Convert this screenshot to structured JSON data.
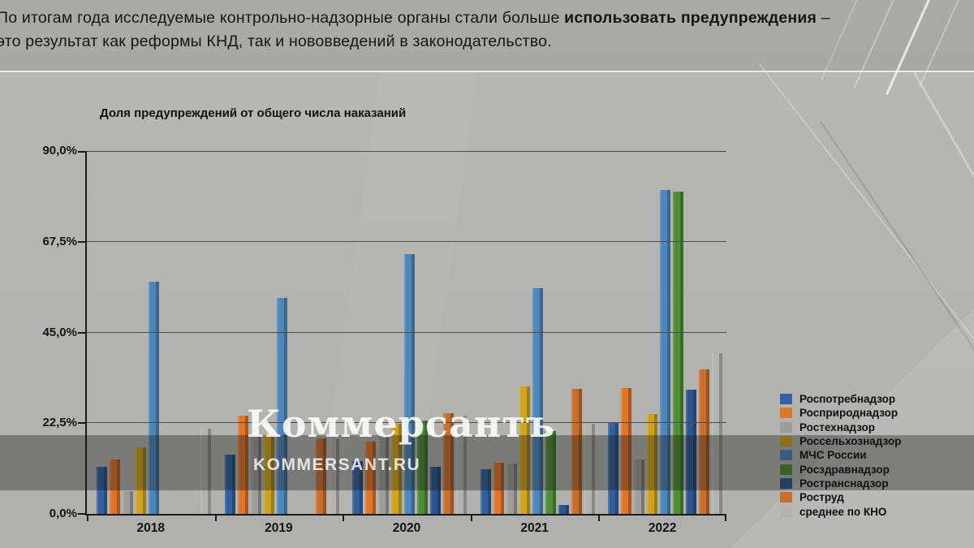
{
  "header": {
    "line1_normal": "По итогам года исследуемые контрольно-надзорные органы стали больше ",
    "line1_bold": "использовать предупреждения",
    "line1_suffix": " –",
    "line2": "это результат как реформы КНД, так и нововведений в законодательство."
  },
  "watermark": {
    "title": "Коммерсантъ",
    "site": "KOMMERSANT.RU"
  },
  "chart_data": {
    "type": "bar",
    "title": "Доля предупреждений от общего числа наказаний",
    "categories": [
      "2018",
      "2019",
      "2020",
      "2021",
      "2022"
    ],
    "series": [
      {
        "name": "Роспотребнадзор",
        "color": "#33619c",
        "values": [
          11.7,
          14.8,
          13.1,
          11.1,
          22.5
        ]
      },
      {
        "name": "Росприроднадзор",
        "color": "#de7529",
        "values": [
          13.4,
          24.4,
          17.9,
          12.7,
          31.3
        ]
      },
      {
        "name": "Ростехнадзор",
        "color": "#9d9d9b",
        "values": [
          5.7,
          19.5,
          19.4,
          12.4,
          13.6
        ]
      },
      {
        "name": "Россельхознадзор",
        "color": "#cfa31d",
        "values": [
          16.5,
          19.8,
          22.3,
          31.6,
          24.7
        ]
      },
      {
        "name": "МЧС России",
        "color": "#4d86ba",
        "values": [
          57.6,
          53.6,
          64.5,
          55.9,
          80.3
        ]
      },
      {
        "name": "Росздравнадзор",
        "color": "#4f8c36",
        "values": [
          null,
          null,
          23.1,
          20.5,
          79.9
        ]
      },
      {
        "name": "Ространснадзор",
        "color": "#2d5590",
        "values": [
          null,
          null,
          11.7,
          2.2,
          30.9
        ]
      },
      {
        "name": "Роструд",
        "color": "#c96f2d",
        "values": [
          null,
          18.8,
          25.0,
          31.0,
          35.8
        ]
      },
      {
        "name": "среднее по КНО",
        "color": "#b3b3b1",
        "values": [
          21.2,
          18.5,
          24.4,
          22.3,
          39.9
        ]
      }
    ],
    "ylim": [
      0,
      90
    ],
    "yticks": [
      "0,0%",
      "22,5%",
      "45,0%",
      "67,5%",
      "90,0%"
    ],
    "ytick_values": [
      0,
      22.5,
      45,
      67.5,
      90
    ],
    "xlabel": "",
    "ylabel": "",
    "grid": true,
    "legend_position": "right"
  }
}
